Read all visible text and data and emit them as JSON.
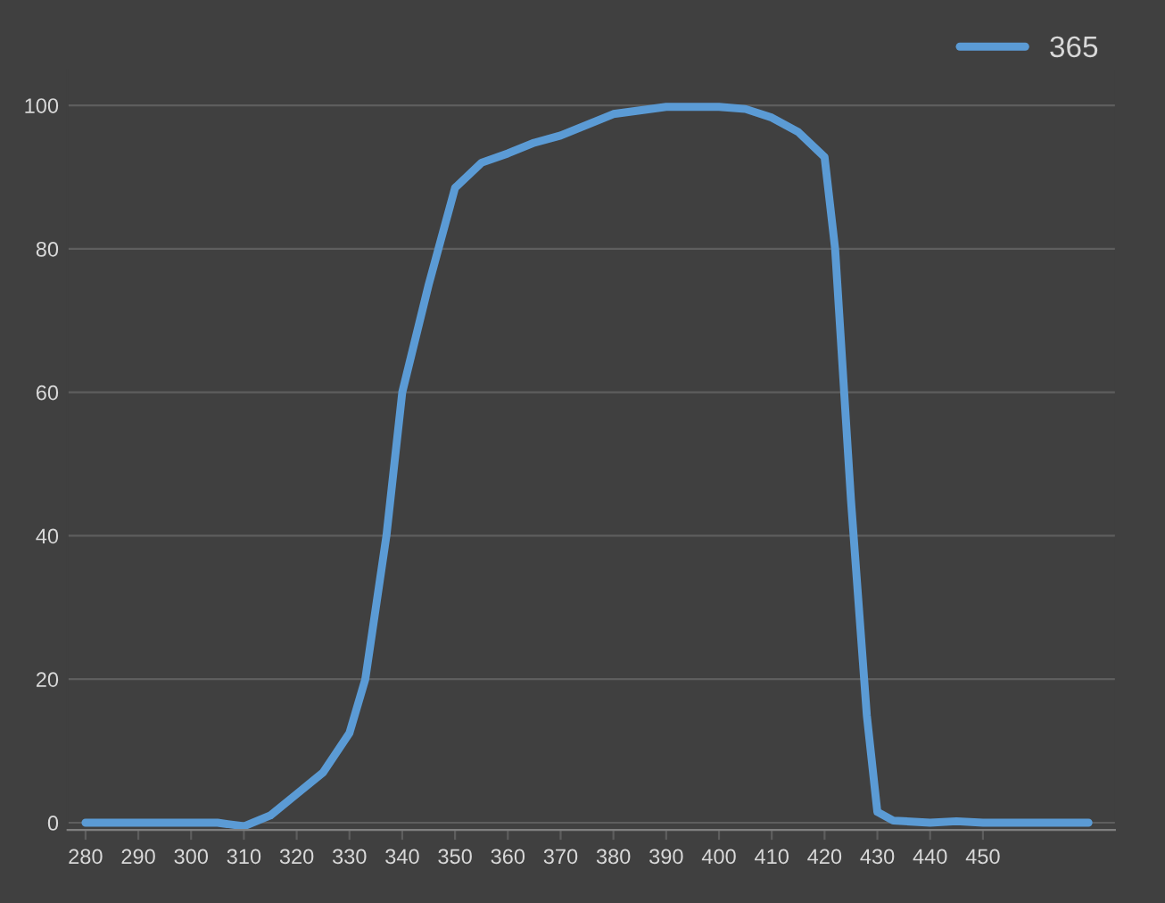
{
  "chart_data": {
    "type": "line",
    "series": [
      {
        "name": "365",
        "color": "#5b9bd5",
        "x": [
          280,
          290,
          300,
          305,
          310,
          315,
          320,
          325,
          330,
          333,
          337,
          340,
          345,
          350,
          355,
          360,
          365,
          370,
          380,
          390,
          400,
          405,
          410,
          415,
          420,
          422,
          425,
          428,
          430,
          433,
          440,
          445,
          450,
          460,
          470
        ],
        "values": [
          0,
          0,
          0,
          0,
          -0.5,
          1,
          4,
          7,
          12.5,
          20,
          40,
          60,
          75,
          88.5,
          92,
          93.3,
          94.8,
          95.8,
          98.8,
          99.8,
          99.8,
          99.5,
          98.3,
          96.3,
          92.8,
          80,
          45,
          15,
          1.5,
          0.3,
          0,
          0.2,
          0,
          0,
          0
        ]
      }
    ],
    "xlim": [
      276.6,
      475
    ],
    "xticks": [
      280,
      290,
      300,
      310,
      320,
      330,
      340,
      350,
      360,
      370,
      380,
      390,
      400,
      410,
      420,
      430,
      440,
      450
    ],
    "ylim": [
      -1,
      105
    ],
    "yticks": [
      0,
      20,
      40,
      60,
      80,
      100
    ],
    "grid": "y",
    "legend": "top right",
    "marker": "none",
    "line_style": "solid"
  }
}
